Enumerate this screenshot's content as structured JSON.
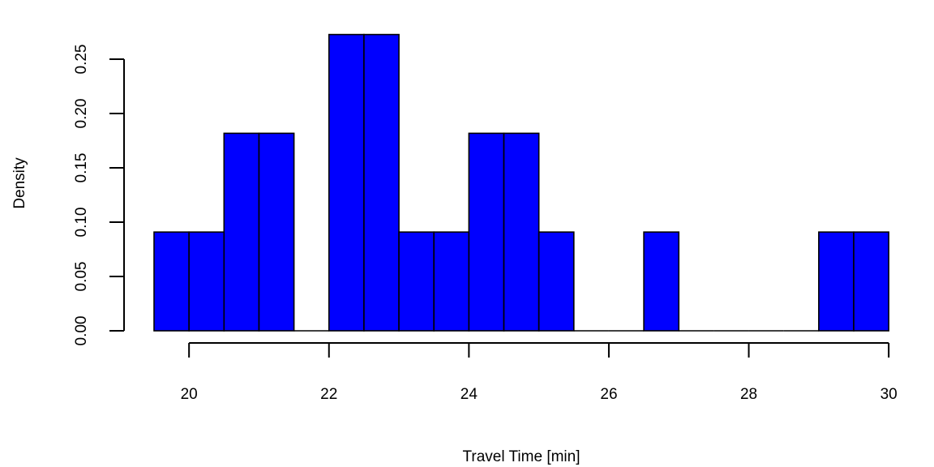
{
  "chart_data": {
    "type": "bar",
    "subtype": "histogram",
    "title": "",
    "xlabel": "Travel Time [min]",
    "ylabel": "Density",
    "bar_color": "#0000ff",
    "bin_width": 0.5,
    "bin_start": 19.5,
    "bin_end": 30,
    "values": [
      0.0909,
      0.0909,
      0.1818,
      0.1818,
      0,
      0.2727,
      0.2727,
      0.0909,
      0.0909,
      0.1818,
      0.1818,
      0.0909,
      0,
      0,
      0.0909,
      0,
      0,
      0,
      0,
      0.0909,
      0.0909
    ],
    "x_ticks": [
      20,
      22,
      24,
      26,
      28,
      30
    ],
    "x_tick_labels": [
      "20",
      "22",
      "24",
      "26",
      "28",
      "30"
    ],
    "y_ticks": [
      0,
      0.05,
      0.1,
      0.15,
      0.2,
      0.25
    ],
    "y_tick_labels": [
      "0.00",
      "0.05",
      "0.10",
      "0.15",
      "0.20",
      "0.25"
    ],
    "xlim": [
      19.5,
      30
    ],
    "ylim": [
      0,
      0.2727
    ],
    "grid": false,
    "legend": "none"
  }
}
